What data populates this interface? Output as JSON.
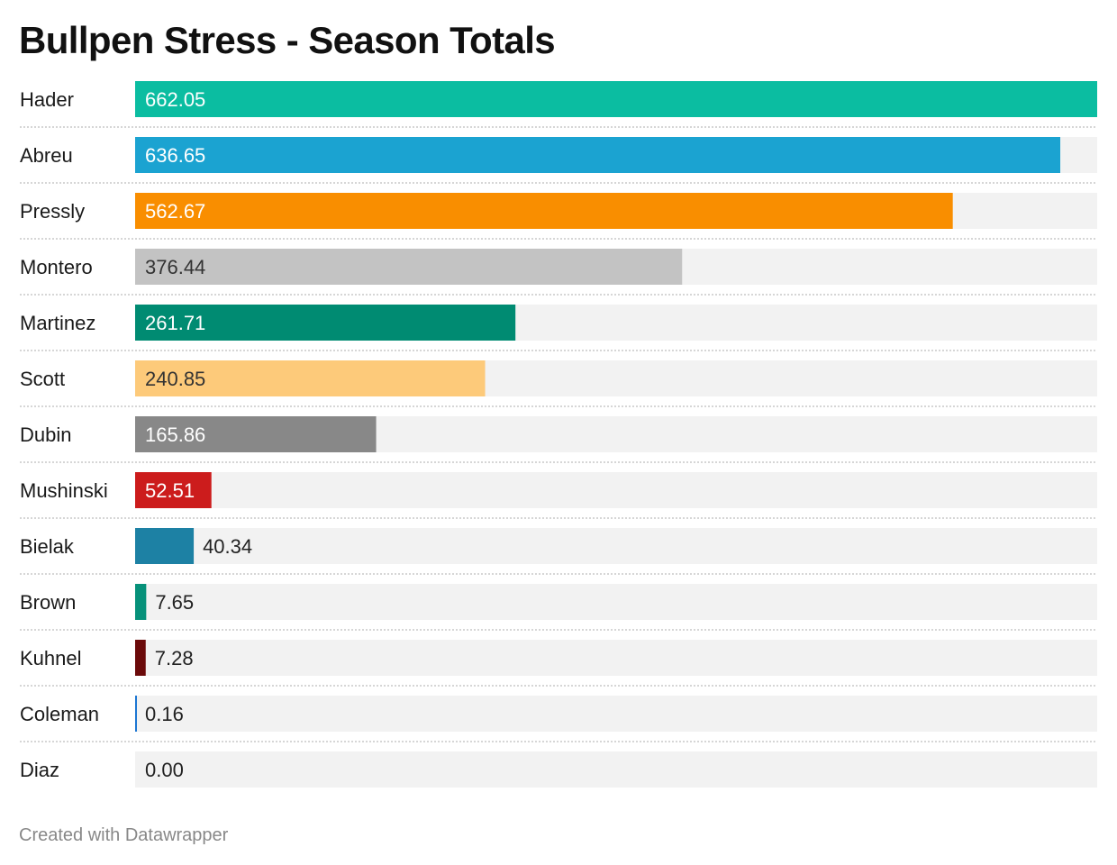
{
  "title": "Bullpen Stress - Season Totals",
  "footer": "Created with Datawrapper",
  "chart_data": {
    "type": "bar",
    "orientation": "horizontal",
    "title": "Bullpen Stress - Season Totals",
    "xlabel": "",
    "ylabel": "",
    "xlim": [
      0,
      662.05
    ],
    "grid": false,
    "categories": [
      "Hader",
      "Abreu",
      "Pressly",
      "Montero",
      "Martinez",
      "Scott",
      "Dubin",
      "Mushinski",
      "Bielak",
      "Brown",
      "Kuhnel",
      "Coleman",
      "Diaz"
    ],
    "values": [
      662.05,
      636.65,
      562.67,
      376.44,
      261.71,
      240.85,
      165.86,
      52.51,
      40.34,
      7.65,
      7.28,
      0.16,
      0.0
    ],
    "value_labels": [
      "662.05",
      "636.65",
      "562.67",
      "376.44",
      "261.71",
      "240.85",
      "165.86",
      "52.51",
      "40.34",
      "7.65",
      "7.28",
      "0.16",
      "0.00"
    ],
    "colors": [
      "#0bbda1",
      "#1ba3d1",
      "#f98e00",
      "#c3c3c3",
      "#008b72",
      "#fdca7a",
      "#888888",
      "#cc1c1c",
      "#1d81a4",
      "#06917a",
      "#6b0a0a",
      "#1c76d2",
      "#cccccc"
    ],
    "label_colors": [
      "#ffffff",
      "#ffffff",
      "#ffffff",
      "#333333",
      "#ffffff",
      "#333333",
      "#ffffff",
      "#ffffff",
      "#222222",
      "#222222",
      "#222222",
      "#222222",
      "#222222"
    ],
    "track_color": "#f2f2f2",
    "separator_color": "#c8c8c8"
  }
}
